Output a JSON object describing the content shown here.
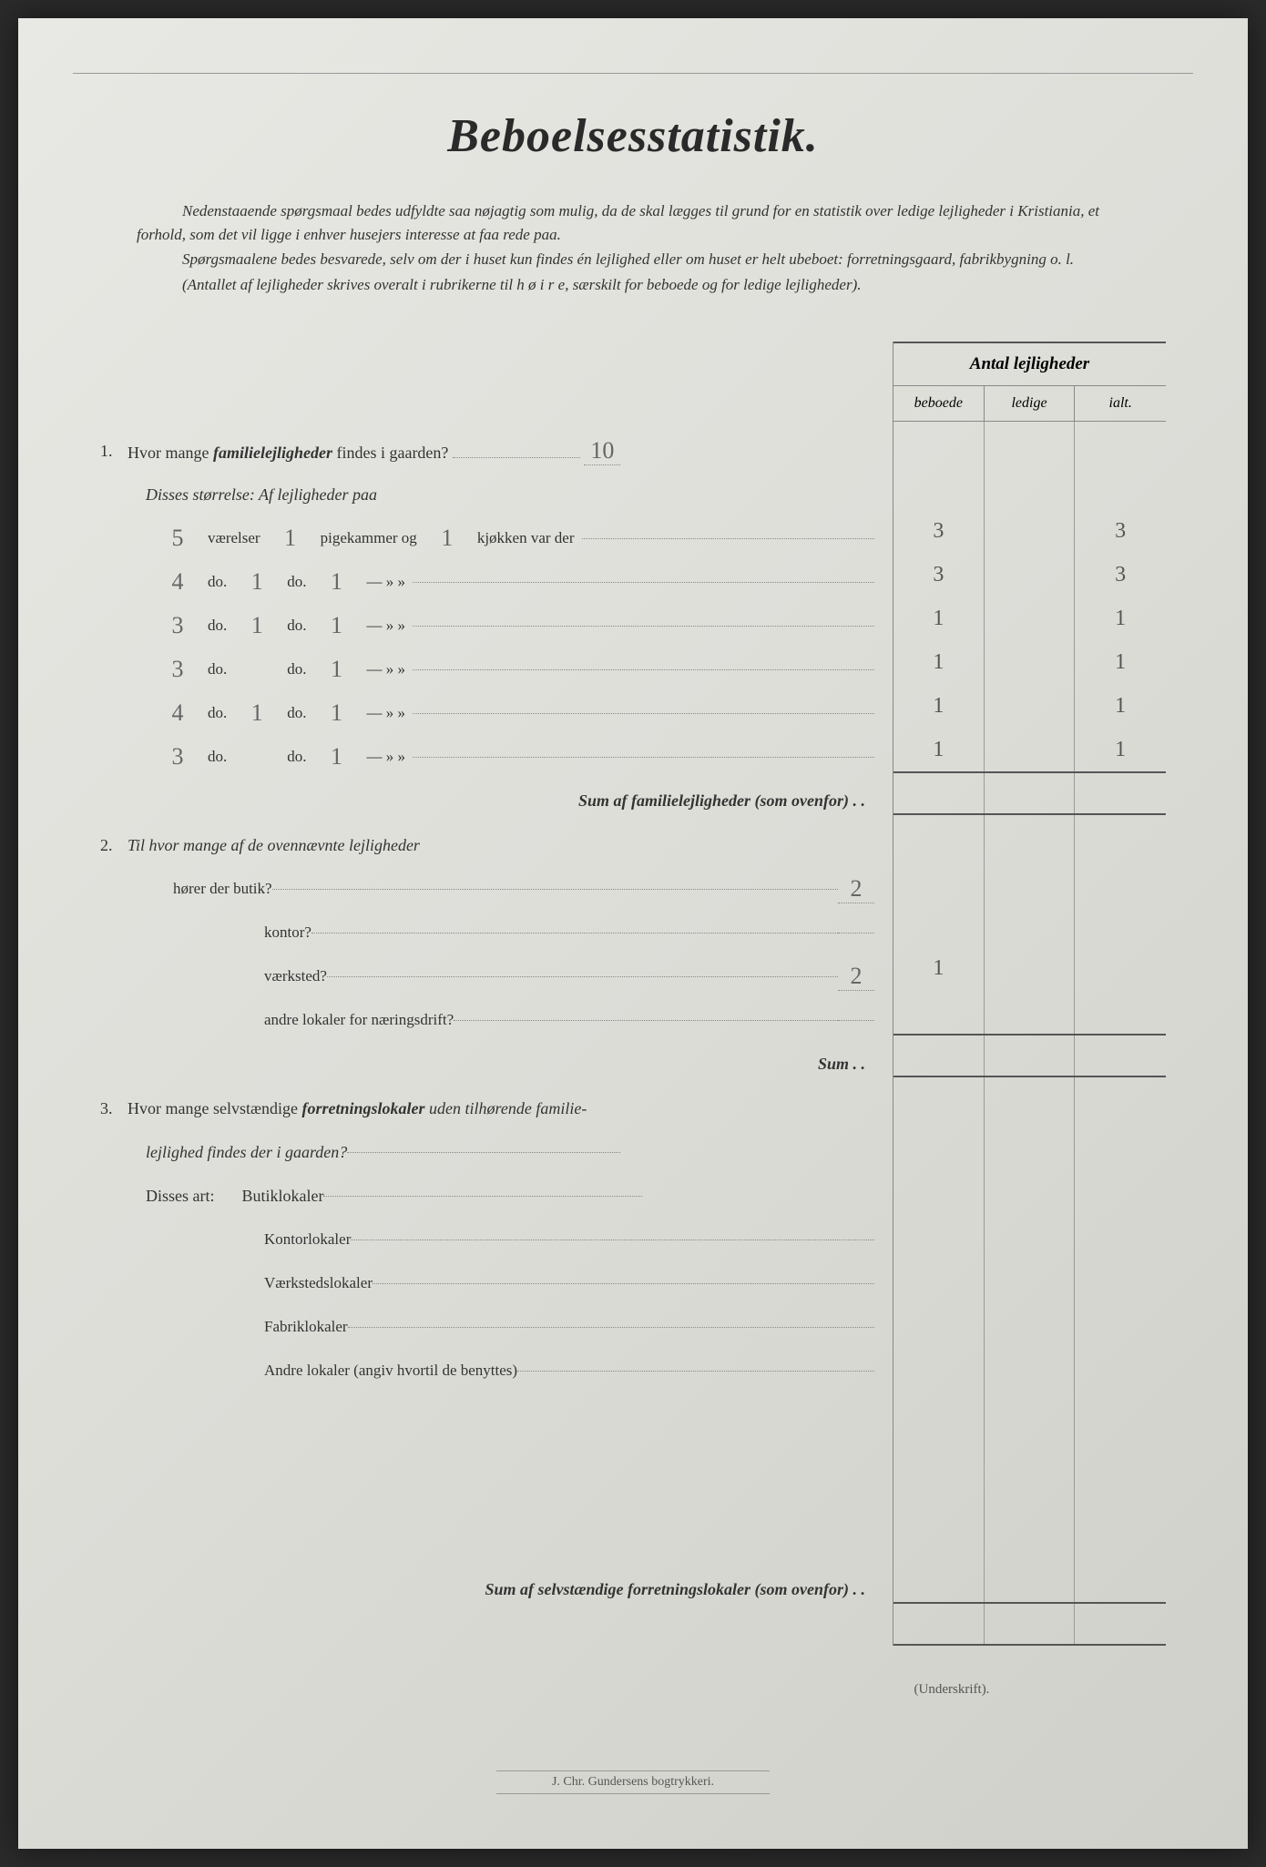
{
  "title": "Beboelsesstatistik.",
  "intro": {
    "p1": "Nedenstaaende spørgsmaal bedes udfyldte saa nøjagtig som mulig, da de skal lægges til grund for en statistik over ledige lejligheder i Kristiania, et forhold, som det vil ligge i enhver husejers interesse at faa rede paa.",
    "p2": "Spørgsmaalene bedes besvarede, selv om der i huset kun findes én lejlighed eller om huset er helt ubeboet: forretningsgaard, fabrikbygning o. l.",
    "p3": "(Antallet af lejligheder skrives overalt i rubrikerne til h ø i r e, særskilt for beboede og for ledige lejligheder)."
  },
  "table_header": {
    "title": "Antal lejligheder",
    "col_beboede": "beboede",
    "col_ledige": "ledige",
    "col_ialt": "ialt."
  },
  "q1": {
    "text_a": "Hvor mange ",
    "text_b": "familielejligheder",
    "text_c": " findes i gaarden?",
    "answer": "10",
    "size_intro": "Disses størrelse:   Af lejligheder paa",
    "rows": [
      {
        "vaer": "5",
        "pig": "1",
        "kjok": "1",
        "lbl_v": "værelser",
        "lbl_p": "pigekammer og",
        "lbl_k": "kjøkken var der",
        "b": "3",
        "l": "",
        "i": "3"
      },
      {
        "vaer": "4",
        "pig": "1",
        "kjok": "1",
        "lbl_v": "do.",
        "lbl_p": "do.",
        "lbl_k": "—  »  »",
        "b": "3",
        "l": "",
        "i": "3"
      },
      {
        "vaer": "3",
        "pig": "1",
        "kjok": "1",
        "lbl_v": "do.",
        "lbl_p": "do.",
        "lbl_k": "—  »  »",
        "b": "1",
        "l": "",
        "i": "1"
      },
      {
        "vaer": "3",
        "pig": "",
        "kjok": "1",
        "lbl_v": "do.",
        "lbl_p": "do.",
        "lbl_k": "—  »  »",
        "b": "1",
        "l": "",
        "i": "1"
      },
      {
        "vaer": "4",
        "pig": "1",
        "kjok": "1",
        "lbl_v": "do.",
        "lbl_p": "do.",
        "lbl_k": "—  »  »",
        "b": "1",
        "l": "",
        "i": "1"
      },
      {
        "vaer": "3",
        "pig": "",
        "kjok": "1",
        "lbl_v": "do.",
        "lbl_p": "do.",
        "lbl_k": "—  »  »",
        "b": "1",
        "l": "",
        "i": "1"
      }
    ],
    "sum_label": "Sum af familielejligheder (som ovenfor) . ."
  },
  "q2": {
    "intro": "Til hvor mange af de ovennævnte lejligheder",
    "rows": [
      {
        "label": "hører der butik?",
        "ans": "2",
        "b": "",
        "l": "",
        "i": ""
      },
      {
        "label": "kontor?",
        "ans": "",
        "b": "",
        "l": "",
        "i": ""
      },
      {
        "label": "værksted?",
        "ans": "2",
        "b": "1",
        "l": "",
        "i": ""
      },
      {
        "label": "andre lokaler for næringsdrift?",
        "ans": "",
        "b": "",
        "l": "",
        "i": ""
      }
    ],
    "sum_label": "Sum . ."
  },
  "q3": {
    "text_a": "Hvor mange selvstændige ",
    "text_b": "forretningslokaler",
    "text_c": " uden tilhørende familie-",
    "text_d": "lejlighed findes der i gaarden?",
    "art_intro": "Disses art:",
    "rows": [
      {
        "label": "Butiklokaler"
      },
      {
        "label": "Kontorlokaler"
      },
      {
        "label": "Værkstedslokaler"
      },
      {
        "label": "Fabriklokaler"
      },
      {
        "label": "Andre lokaler (angiv hvortil de benyttes)"
      }
    ],
    "sum_label": "Sum af selvstændige forretningslokaler (som ovenfor) . ."
  },
  "signature_label": "(Underskrift).",
  "printer": "J. Chr. Gundersens bogtrykkeri.",
  "colors": {
    "page_bg": "#e2e2dc",
    "text": "#2a2a2a",
    "handwriting": "#666666",
    "rule": "#888888"
  }
}
